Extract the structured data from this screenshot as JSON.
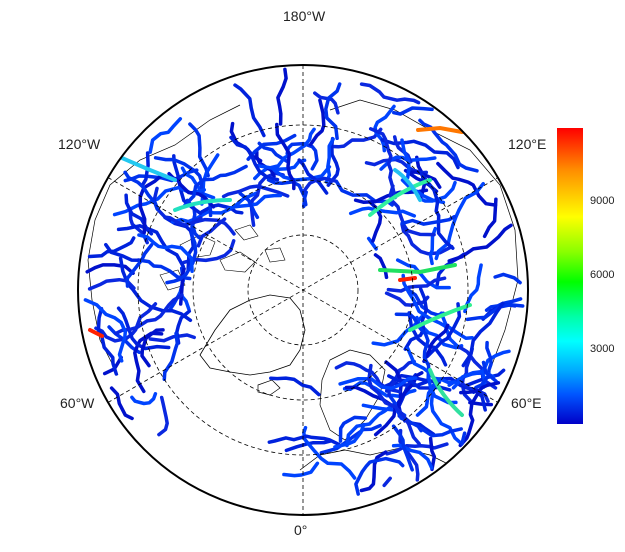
{
  "labels": {
    "top": "180°W",
    "bottom": "0°",
    "upper_left": "120°W",
    "upper_right": "120°E",
    "lower_left": "60°W",
    "lower_right": "60°E"
  },
  "legend": {
    "ticks": [
      {
        "value": "9000",
        "frac": 0.75
      },
      {
        "value": "6000",
        "frac": 0.5
      },
      {
        "value": "3000",
        "frac": 0.25
      }
    ],
    "colors": [
      "#0000c8",
      "#0055ff",
      "#00aaff",
      "#00ffff",
      "#00ffaa",
      "#00ff00",
      "#88ff00",
      "#ffff00",
      "#ff8c00",
      "#ff0000"
    ]
  },
  "map": {
    "projection": "north-polar-stereographic",
    "graticule": "dashed",
    "coastline_color": "#000000",
    "river_color_low": "#0022dd"
  }
}
